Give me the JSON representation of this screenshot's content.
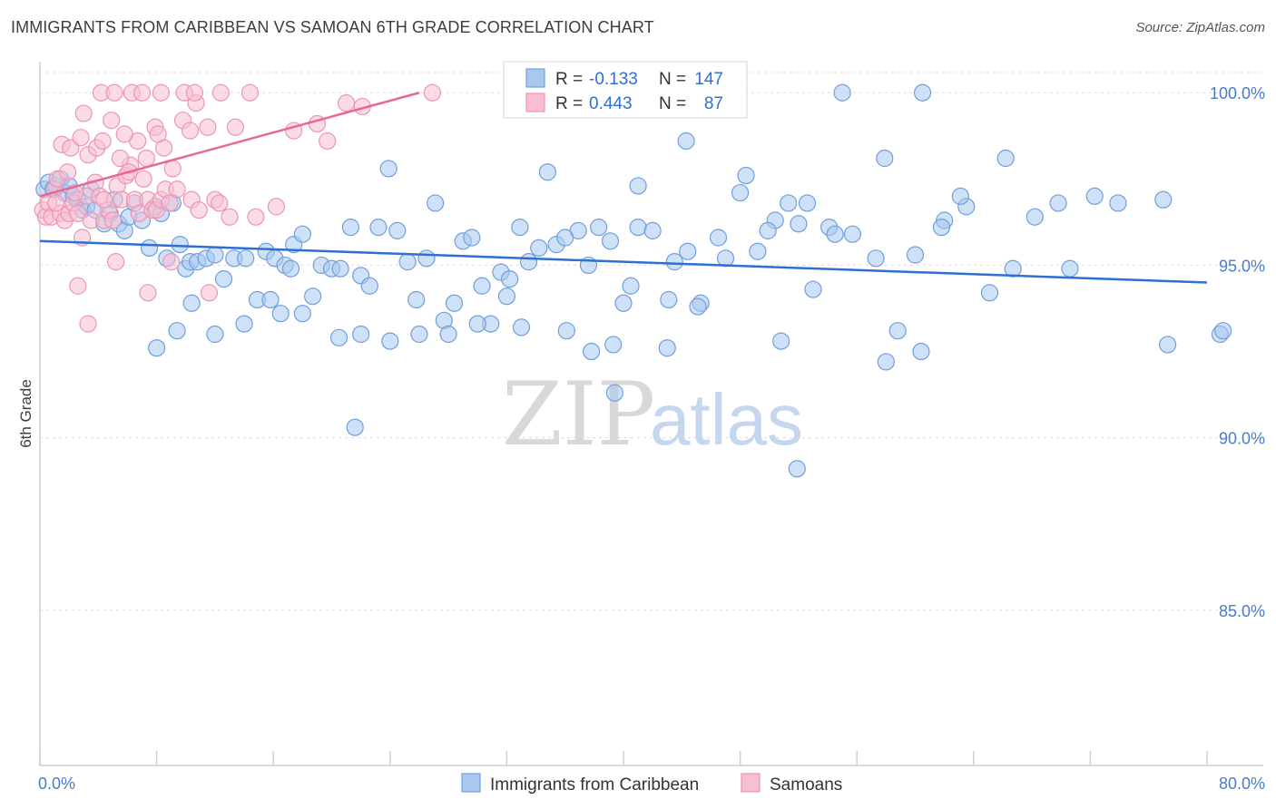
{
  "title": "IMMIGRANTS FROM CARIBBEAN VS SAMOAN 6TH GRADE CORRELATION CHART",
  "source": "Source: ZipAtlas.com",
  "watermark": {
    "zip": "ZIP",
    "atlas": "atlas"
  },
  "colors": {
    "blue_fill": "#a8c8f0",
    "blue_stroke": "#6f9fdc",
    "blue_line": "#2e6fd6",
    "pink_fill": "#f8bfd2",
    "pink_stroke": "#ec95b3",
    "pink_line": "#e8688f",
    "grid": "#dcdcdc",
    "axis_text": "#4a7bd0"
  },
  "legend": {
    "r_label": "R =",
    "n_label": "N =",
    "series": [
      {
        "r": "-0.133",
        "n": "147"
      },
      {
        "r": "0.443",
        "n": "87"
      }
    ]
  },
  "chart_data": {
    "type": "scatter",
    "title": "IMMIGRANTS FROM CARIBBEAN VS SAMOAN 6TH GRADE CORRELATION CHART",
    "xlabel": "",
    "ylabel": "6th Grade",
    "xlim": [
      0,
      80
    ],
    "ylim": [
      80.5,
      100.9
    ],
    "x_tick_labels": [
      "0.0%",
      "80.0%"
    ],
    "y_ticks": [
      85,
      90,
      95,
      100
    ],
    "y_tick_labels": [
      "85.0%",
      "90.0%",
      "95.0%",
      "100.0%"
    ],
    "grid": true,
    "legend_position": "top-center",
    "series": [
      {
        "name": "Immigrants from Caribbean",
        "color": "#a8c8f0",
        "trend": {
          "x": [
            0,
            80
          ],
          "y": [
            95.7,
            94.5
          ]
        },
        "points": [
          [
            0.3,
            97.2
          ],
          [
            0.6,
            97.4
          ],
          [
            0.9,
            97.2
          ],
          [
            1.1,
            97.3
          ],
          [
            1.4,
            97.5
          ],
          [
            1.7,
            97.1
          ],
          [
            2.0,
            97.3
          ],
          [
            2.3,
            97.0
          ],
          [
            2.6,
            96.9
          ],
          [
            2.9,
            96.6
          ],
          [
            3.2,
            96.7
          ],
          [
            3.5,
            97.2
          ],
          [
            3.8,
            96.6
          ],
          [
            4.4,
            96.2
          ],
          [
            4.8,
            96.5
          ],
          [
            5.1,
            96.9
          ],
          [
            5.4,
            96.2
          ],
          [
            5.8,
            96.0
          ],
          [
            6.1,
            96.4
          ],
          [
            6.5,
            96.8
          ],
          [
            7.0,
            96.3
          ],
          [
            7.5,
            95.5
          ],
          [
            7.9,
            96.7
          ],
          [
            8.3,
            96.5
          ],
          [
            8.7,
            95.2
          ],
          [
            9.1,
            96.8
          ],
          [
            9.6,
            95.6
          ],
          [
            10.0,
            94.9
          ],
          [
            10.3,
            95.1
          ],
          [
            10.8,
            95.1
          ],
          [
            11.4,
            95.2
          ],
          [
            12.0,
            95.3
          ],
          [
            12.6,
            94.6
          ],
          [
            13.3,
            95.2
          ],
          [
            14.1,
            95.2
          ],
          [
            14.9,
            94.0
          ],
          [
            15.5,
            95.4
          ],
          [
            16.1,
            95.2
          ],
          [
            16.8,
            95.0
          ],
          [
            17.4,
            95.6
          ],
          [
            18.0,
            95.9
          ],
          [
            18.7,
            94.1
          ],
          [
            19.3,
            95.0
          ],
          [
            20.0,
            94.9
          ],
          [
            20.6,
            94.9
          ],
          [
            21.3,
            96.1
          ],
          [
            22.0,
            94.7
          ],
          [
            22.6,
            94.4
          ],
          [
            23.2,
            96.1
          ],
          [
            23.9,
            97.8
          ],
          [
            24.5,
            96.0
          ],
          [
            25.2,
            95.1
          ],
          [
            25.8,
            94.0
          ],
          [
            26.5,
            95.2
          ],
          [
            27.1,
            96.8
          ],
          [
            27.7,
            93.4
          ],
          [
            28.4,
            93.9
          ],
          [
            29.0,
            95.7
          ],
          [
            29.6,
            95.8
          ],
          [
            30.3,
            94.4
          ],
          [
            30.9,
            93.3
          ],
          [
            31.6,
            94.8
          ],
          [
            32.2,
            94.6
          ],
          [
            32.9,
            96.1
          ],
          [
            33.5,
            95.1
          ],
          [
            34.2,
            95.5
          ],
          [
            34.8,
            97.7
          ],
          [
            35.4,
            95.6
          ],
          [
            36.1,
            93.1
          ],
          [
            36.9,
            96.0
          ],
          [
            37.6,
            95.0
          ],
          [
            38.3,
            96.1
          ],
          [
            39.1,
            95.7
          ],
          [
            40.0,
            93.9
          ],
          [
            41.0,
            96.1
          ],
          [
            42.0,
            96.0
          ],
          [
            43.1,
            94.0
          ],
          [
            44.4,
            95.4
          ],
          [
            45.3,
            93.9
          ],
          [
            46.5,
            95.8
          ],
          [
            48.0,
            97.1
          ],
          [
            49.2,
            95.4
          ],
          [
            50.4,
            96.3
          ],
          [
            51.3,
            96.8
          ],
          [
            52.6,
            96.8
          ],
          [
            54.1,
            96.1
          ],
          [
            55.7,
            95.9
          ],
          [
            57.3,
            95.2
          ],
          [
            58.8,
            93.1
          ],
          [
            60.4,
            92.5
          ],
          [
            62.0,
            96.3
          ],
          [
            63.5,
            96.7
          ],
          [
            65.1,
            94.2
          ],
          [
            66.7,
            94.9
          ],
          [
            68.2,
            96.4
          ],
          [
            69.8,
            96.8
          ],
          [
            70.6,
            94.9
          ],
          [
            73.9,
            96.8
          ],
          [
            77.3,
            92.7
          ],
          [
            80.9,
            93.0
          ],
          [
            81.1,
            93.1
          ],
          [
            55.0,
            100.0
          ],
          [
            60.5,
            100.0
          ],
          [
            66.2,
            98.1
          ],
          [
            72.3,
            97.0
          ],
          [
            77.0,
            96.9
          ],
          [
            44.3,
            98.6
          ],
          [
            48.4,
            97.6
          ],
          [
            57.9,
            98.1
          ],
          [
            41.0,
            97.3
          ],
          [
            49.9,
            96.0
          ],
          [
            52.0,
            96.2
          ],
          [
            54.5,
            95.9
          ],
          [
            61.8,
            96.1
          ],
          [
            63.1,
            97.0
          ],
          [
            60.0,
            95.3
          ],
          [
            53.0,
            94.3
          ],
          [
            47.0,
            95.2
          ],
          [
            43.5,
            95.1
          ],
          [
            36.0,
            95.8
          ],
          [
            32.0,
            94.1
          ],
          [
            30.0,
            93.3
          ],
          [
            28.0,
            93.0
          ],
          [
            26.0,
            93.0
          ],
          [
            24.0,
            92.8
          ],
          [
            22.0,
            93.0
          ],
          [
            20.5,
            92.9
          ],
          [
            18.0,
            93.6
          ],
          [
            16.5,
            93.6
          ],
          [
            14.0,
            93.3
          ],
          [
            12.0,
            93.0
          ],
          [
            10.4,
            93.9
          ],
          [
            9.4,
            93.1
          ],
          [
            8.0,
            92.6
          ],
          [
            15.8,
            94.0
          ],
          [
            17.2,
            94.9
          ],
          [
            33.0,
            93.2
          ],
          [
            37.8,
            92.5
          ],
          [
            39.4,
            91.3
          ],
          [
            45.1,
            93.8
          ],
          [
            39.3,
            92.7
          ],
          [
            50.8,
            92.8
          ],
          [
            43.0,
            92.6
          ],
          [
            21.6,
            90.3
          ],
          [
            51.9,
            89.1
          ],
          [
            40.5,
            94.4
          ],
          [
            58.0,
            92.2
          ]
        ]
      },
      {
        "name": "Samoans",
        "color": "#f8bfd2",
        "trend": {
          "x": [
            0,
            26
          ],
          "y": [
            97.0,
            100.0
          ]
        },
        "points": [
          [
            0.2,
            96.6
          ],
          [
            0.4,
            96.4
          ],
          [
            0.6,
            96.8
          ],
          [
            0.8,
            96.4
          ],
          [
            1.0,
            97.2
          ],
          [
            1.2,
            97.5
          ],
          [
            1.4,
            96.5
          ],
          [
            1.7,
            96.3
          ],
          [
            2.0,
            96.5
          ],
          [
            2.3,
            96.8
          ],
          [
            2.6,
            96.5
          ],
          [
            2.9,
            95.8
          ],
          [
            3.2,
            97.0
          ],
          [
            3.5,
            96.3
          ],
          [
            3.8,
            97.4
          ],
          [
            4.1,
            97.0
          ],
          [
            4.4,
            96.3
          ],
          [
            4.7,
            96.6
          ],
          [
            5.0,
            96.3
          ],
          [
            5.3,
            97.3
          ],
          [
            5.6,
            96.9
          ],
          [
            5.9,
            97.6
          ],
          [
            6.2,
            97.9
          ],
          [
            6.5,
            96.9
          ],
          [
            6.8,
            96.5
          ],
          [
            7.1,
            97.5
          ],
          [
            7.4,
            96.9
          ],
          [
            7.7,
            96.6
          ],
          [
            8.0,
            96.6
          ],
          [
            8.3,
            96.9
          ],
          [
            8.6,
            97.2
          ],
          [
            8.9,
            96.8
          ],
          [
            9.4,
            97.2
          ],
          [
            10.4,
            96.9
          ],
          [
            10.9,
            96.6
          ],
          [
            12.0,
            96.9
          ],
          [
            13.0,
            96.4
          ],
          [
            14.8,
            96.4
          ],
          [
            16.2,
            96.7
          ],
          [
            1.5,
            98.5
          ],
          [
            2.1,
            98.4
          ],
          [
            2.8,
            98.7
          ],
          [
            3.3,
            98.2
          ],
          [
            3.9,
            98.4
          ],
          [
            4.3,
            98.6
          ],
          [
            4.9,
            99.2
          ],
          [
            5.5,
            98.1
          ],
          [
            6.1,
            97.7
          ],
          [
            6.7,
            98.6
          ],
          [
            7.3,
            98.1
          ],
          [
            7.9,
            99.0
          ],
          [
            8.5,
            98.4
          ],
          [
            9.1,
            97.8
          ],
          [
            9.8,
            99.2
          ],
          [
            10.7,
            99.7
          ],
          [
            11.5,
            99.0
          ],
          [
            13.4,
            99.0
          ],
          [
            17.4,
            98.9
          ],
          [
            19.0,
            99.1
          ],
          [
            19.7,
            98.6
          ],
          [
            4.2,
            100.0
          ],
          [
            5.1,
            100.0
          ],
          [
            6.3,
            100.0
          ],
          [
            7.0,
            100.0
          ],
          [
            8.3,
            100.0
          ],
          [
            9.9,
            100.0
          ],
          [
            10.6,
            100.0
          ],
          [
            12.4,
            100.0
          ],
          [
            14.4,
            100.0
          ],
          [
            21.0,
            99.7
          ],
          [
            22.1,
            99.6
          ],
          [
            26.9,
            100.0
          ],
          [
            3.0,
            99.4
          ],
          [
            5.8,
            98.8
          ],
          [
            8.1,
            98.8
          ],
          [
            10.3,
            98.9
          ],
          [
            2.6,
            94.4
          ],
          [
            3.3,
            93.3
          ],
          [
            5.2,
            95.1
          ],
          [
            7.4,
            94.2
          ],
          [
            9.0,
            95.1
          ],
          [
            11.6,
            94.2
          ],
          [
            12.3,
            96.8
          ],
          [
            4.4,
            96.9
          ],
          [
            1.9,
            97.7
          ],
          [
            1.1,
            96.8
          ],
          [
            2.4,
            97.1
          ]
        ]
      }
    ]
  },
  "bottom_legend": [
    {
      "label": "Immigrants from Caribbean",
      "color": "#a8c8f0"
    },
    {
      "label": "Samoans",
      "color": "#f8bfd2"
    }
  ]
}
